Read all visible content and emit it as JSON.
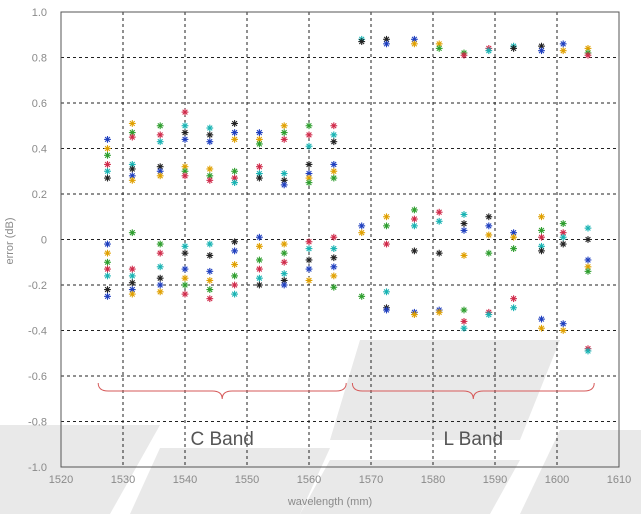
{
  "chart_data": {
    "type": "scatter",
    "title": "",
    "xlabel": "wavelength (mm)",
    "ylabel": "error (dB)",
    "xlim": [
      1520,
      1610
    ],
    "ylim": [
      -1.0,
      1.0
    ],
    "x_ticks": [
      "1520",
      "1530",
      "1540",
      "1550",
      "1560",
      "1570",
      "1580",
      "1590",
      "1600",
      "1610"
    ],
    "y_ticks": [
      "1.0",
      "0.8",
      "0.6",
      "0.4",
      "0.2",
      "0",
      "-0.2",
      "-0.4",
      "-0.6",
      "-0.8",
      "-1.0"
    ],
    "grid": true,
    "marker": "asterisk",
    "series_colors": [
      "#1f3fbf",
      "#e0a000",
      "#2e9e2e",
      "#d02a4a",
      "#19b3b3",
      "#222222"
    ],
    "annotations": [
      {
        "text": "C Band",
        "x_range": [
          1526,
          1566
        ]
      },
      {
        "text": "L Band",
        "x_range": [
          1567,
          1606
        ]
      }
    ],
    "clusters": [
      {
        "x": 1527.5,
        "ys": [
          0.44,
          0.4,
          0.37,
          0.33,
          0.3,
          0.27,
          -0.02,
          -0.06,
          -0.1,
          -0.13,
          -0.16,
          -0.22,
          -0.25
        ]
      },
      {
        "x": 1531.5,
        "ys": [
          0.51,
          0.47,
          0.45,
          0.33,
          0.31,
          0.28,
          0.26,
          0.03,
          -0.13,
          -0.16,
          -0.19,
          -0.22,
          -0.24
        ]
      },
      {
        "x": 1536.0,
        "ys": [
          0.5,
          0.46,
          0.43,
          0.32,
          0.3,
          0.28,
          -0.02,
          -0.06,
          -0.12,
          -0.17,
          -0.2,
          -0.23
        ]
      },
      {
        "x": 1540.0,
        "ys": [
          0.56,
          0.5,
          0.47,
          0.44,
          0.32,
          0.3,
          0.28,
          -0.03,
          -0.06,
          -0.13,
          -0.17,
          -0.2,
          -0.24
        ]
      },
      {
        "x": 1544.0,
        "ys": [
          0.49,
          0.46,
          0.43,
          0.31,
          0.28,
          0.26,
          -0.02,
          -0.07,
          -0.14,
          -0.18,
          -0.22,
          -0.26
        ]
      },
      {
        "x": 1548.0,
        "ys": [
          0.51,
          0.47,
          0.44,
          0.3,
          0.27,
          0.25,
          -0.01,
          -0.05,
          -0.11,
          -0.16,
          -0.2,
          -0.24
        ]
      },
      {
        "x": 1552.0,
        "ys": [
          0.47,
          0.44,
          0.42,
          0.32,
          0.29,
          0.27,
          0.01,
          -0.03,
          -0.09,
          -0.13,
          -0.17,
          -0.2
        ]
      },
      {
        "x": 1556.0,
        "ys": [
          0.5,
          0.47,
          0.44,
          0.29,
          0.26,
          0.24,
          -0.02,
          -0.06,
          -0.1,
          -0.15,
          -0.18,
          -0.2
        ]
      },
      {
        "x": 1560.0,
        "ys": [
          0.5,
          0.46,
          0.41,
          0.33,
          0.29,
          0.27,
          0.25,
          -0.01,
          -0.04,
          -0.09,
          -0.13,
          -0.18
        ]
      },
      {
        "x": 1564.0,
        "ys": [
          0.5,
          0.46,
          0.43,
          0.33,
          0.3,
          0.27,
          0.01,
          -0.04,
          -0.08,
          -0.12,
          -0.16,
          -0.21
        ]
      },
      {
        "x": 1568.5,
        "ys": [
          0.88,
          0.87,
          0.06,
          0.03,
          -0.25
        ]
      },
      {
        "x": 1572.5,
        "ys": [
          0.88,
          0.86,
          0.1,
          0.06,
          -0.02,
          -0.23,
          -0.3,
          -0.31
        ]
      },
      {
        "x": 1577.0,
        "ys": [
          0.88,
          0.86,
          0.13,
          0.09,
          0.06,
          -0.05,
          -0.32,
          -0.33
        ]
      },
      {
        "x": 1581.0,
        "ys": [
          0.86,
          0.84,
          0.12,
          0.08,
          -0.06,
          -0.31,
          -0.32
        ]
      },
      {
        "x": 1585.0,
        "ys": [
          0.82,
          0.81,
          0.11,
          0.07,
          0.04,
          -0.07,
          -0.31,
          -0.36,
          -0.39
        ]
      },
      {
        "x": 1589.0,
        "ys": [
          0.84,
          0.83,
          0.1,
          0.06,
          0.02,
          -0.06,
          -0.32,
          -0.33
        ]
      },
      {
        "x": 1593.0,
        "ys": [
          0.85,
          0.84,
          0.03,
          0.01,
          -0.04,
          -0.26,
          -0.3
        ]
      },
      {
        "x": 1597.5,
        "ys": [
          0.85,
          0.83,
          0.1,
          0.04,
          0.01,
          -0.03,
          -0.05,
          -0.35,
          -0.39
        ]
      },
      {
        "x": 1601.0,
        "ys": [
          0.86,
          0.83,
          0.07,
          0.03,
          0.01,
          -0.02,
          -0.37,
          -0.4
        ]
      },
      {
        "x": 1605.0,
        "ys": [
          0.84,
          0.82,
          0.81,
          0.05,
          0.0,
          -0.09,
          -0.12,
          -0.14,
          -0.48,
          -0.49
        ]
      }
    ]
  }
}
